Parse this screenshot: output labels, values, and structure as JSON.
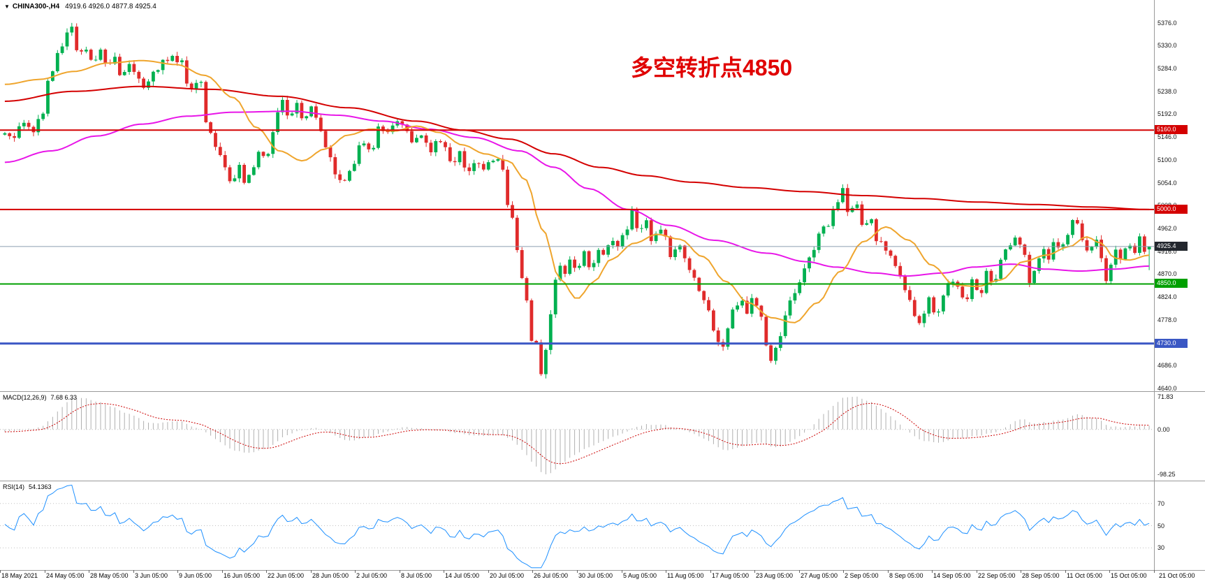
{
  "header": {
    "collapse_icon": "▼",
    "symbol_label": "CHINA300-,H4",
    "ohlc": "4919.6 4926.0 4877.8 4925.4"
  },
  "annotation": {
    "text": "多空转折点4850",
    "color": "#e00000"
  },
  "chart_data": {
    "type": "candlestick",
    "instrument": "CHINA300-",
    "timeframe": "H4",
    "visible_bars": 240,
    "up_color": "#00b050",
    "down_color": "#e02b2b",
    "last_candle": {
      "open": 4919.6,
      "high": 4926.0,
      "low": 4877.8,
      "close": 4925.4
    },
    "price_axis": {
      "min": 4634,
      "max": 5422,
      "ticks": [
        5376.0,
        5330.0,
        5284.0,
        5238.0,
        5192.0,
        5146.0,
        5100.0,
        5054.0,
        5008.0,
        4962.0,
        4916.0,
        4870.0,
        4824.0,
        4778.0,
        4732.0,
        4686.0,
        4640.0
      ]
    },
    "time_axis": {
      "labels": [
        "18 May 2021",
        "24 May 05:00",
        "28 May 05:00",
        "3 Jun 05:00",
        "9 Jun 05:00",
        "16 Jun 05:00",
        "22 Jun 05:00",
        "28 Jun 05:00",
        "2 Jul 05:00",
        "8 Jul 05:00",
        "14 Jul 05:00",
        "20 Jul 05:00",
        "26 Jul 05:00",
        "30 Jul 05:00",
        "5 Aug 05:00",
        "11 Aug 05:00",
        "17 Aug 05:00",
        "23 Aug 05:00",
        "27 Aug 05:00",
        "2 Sep 05:00",
        "8 Sep 05:00",
        "14 Sep 05:00",
        "22 Sep 05:00",
        "28 Sep 05:00",
        "11 Oct 05:00",
        "15 Oct 05:00",
        "21 Oct 05:00"
      ]
    },
    "horizontal_lines": [
      {
        "name": "resistance-5160",
        "price": 5160.0,
        "color": "#d40000",
        "width": 2
      },
      {
        "name": "resistance-5000",
        "price": 5000.0,
        "color": "#d40000",
        "width": 2
      },
      {
        "name": "support-4850",
        "price": 4850.0,
        "color": "#00a000",
        "width": 2
      },
      {
        "name": "support-4730",
        "price": 4730.0,
        "color": "#3a57c4",
        "width": 3
      }
    ],
    "current_price": {
      "value": 4925.4,
      "line_color": "#8c9db0",
      "label_bg": "#23272e"
    },
    "price_path": [
      [
        0.0,
        5160
      ],
      [
        0.008,
        5148
      ],
      [
        0.016,
        5175
      ],
      [
        0.024,
        5155
      ],
      [
        0.032,
        5190
      ],
      [
        0.04,
        5270
      ],
      [
        0.05,
        5335
      ],
      [
        0.058,
        5368
      ],
      [
        0.064,
        5310
      ],
      [
        0.07,
        5330
      ],
      [
        0.077,
        5300
      ],
      [
        0.084,
        5322
      ],
      [
        0.09,
        5290
      ],
      [
        0.096,
        5312
      ],
      [
        0.102,
        5270
      ],
      [
        0.108,
        5295
      ],
      [
        0.115,
        5278
      ],
      [
        0.122,
        5240
      ],
      [
        0.13,
        5272
      ],
      [
        0.138,
        5300
      ],
      [
        0.146,
        5310
      ],
      [
        0.154,
        5295
      ],
      [
        0.162,
        5240
      ],
      [
        0.17,
        5268
      ],
      [
        0.178,
        5160
      ],
      [
        0.185,
        5120
      ],
      [
        0.192,
        5082
      ],
      [
        0.198,
        5052
      ],
      [
        0.204,
        5090
      ],
      [
        0.21,
        5052
      ],
      [
        0.216,
        5085
      ],
      [
        0.222,
        5120
      ],
      [
        0.228,
        5100
      ],
      [
        0.235,
        5160
      ],
      [
        0.242,
        5225
      ],
      [
        0.248,
        5190
      ],
      [
        0.255,
        5215
      ],
      [
        0.262,
        5180
      ],
      [
        0.269,
        5205
      ],
      [
        0.276,
        5160
      ],
      [
        0.283,
        5110
      ],
      [
        0.29,
        5070
      ],
      [
        0.297,
        5058
      ],
      [
        0.304,
        5095
      ],
      [
        0.312,
        5140
      ],
      [
        0.32,
        5120
      ],
      [
        0.328,
        5165
      ],
      [
        0.335,
        5150
      ],
      [
        0.342,
        5185
      ],
      [
        0.35,
        5160
      ],
      [
        0.357,
        5130
      ],
      [
        0.364,
        5155
      ],
      [
        0.371,
        5115
      ],
      [
        0.378,
        5140
      ],
      [
        0.385,
        5125
      ],
      [
        0.392,
        5090
      ],
      [
        0.398,
        5115
      ],
      [
        0.404,
        5070
      ],
      [
        0.41,
        5095
      ],
      [
        0.417,
        5082
      ],
      [
        0.423,
        5092
      ],
      [
        0.429,
        5108
      ],
      [
        0.435,
        5080
      ],
      [
        0.44,
        5010
      ],
      [
        0.445,
        4980
      ],
      [
        0.45,
        4870
      ],
      [
        0.455,
        4835
      ],
      [
        0.459,
        4750
      ],
      [
        0.4625,
        4700
      ],
      [
        0.466,
        4755
      ],
      [
        0.469,
        4660
      ],
      [
        0.4725,
        4720
      ],
      [
        0.476,
        4780
      ],
      [
        0.48,
        4858
      ],
      [
        0.484,
        4895
      ],
      [
        0.489,
        4870
      ],
      [
        0.494,
        4905
      ],
      [
        0.5,
        4882
      ],
      [
        0.506,
        4912
      ],
      [
        0.512,
        4882
      ],
      [
        0.518,
        4920
      ],
      [
        0.524,
        4905
      ],
      [
        0.53,
        4945
      ],
      [
        0.536,
        4920
      ],
      [
        0.542,
        4958
      ],
      [
        0.548,
        4995
      ],
      [
        0.554,
        4952
      ],
      [
        0.56,
        4975
      ],
      [
        0.566,
        4935
      ],
      [
        0.572,
        4958
      ],
      [
        0.577,
        4945
      ],
      [
        0.583,
        4905
      ],
      [
        0.589,
        4932
      ],
      [
        0.595,
        4898
      ],
      [
        0.601,
        4862
      ],
      [
        0.608,
        4835
      ],
      [
        0.615,
        4792
      ],
      [
        0.621,
        4740
      ],
      [
        0.626,
        4712
      ],
      [
        0.631,
        4765
      ],
      [
        0.637,
        4800
      ],
      [
        0.643,
        4825
      ],
      [
        0.649,
        4790
      ],
      [
        0.654,
        4822
      ],
      [
        0.66,
        4782
      ],
      [
        0.666,
        4722
      ],
      [
        0.671,
        4692
      ],
      [
        0.676,
        4735
      ],
      [
        0.681,
        4782
      ],
      [
        0.687,
        4815
      ],
      [
        0.692,
        4840
      ],
      [
        0.699,
        4880
      ],
      [
        0.706,
        4915
      ],
      [
        0.712,
        4950
      ],
      [
        0.719,
        4970
      ],
      [
        0.726,
        5012
      ],
      [
        0.732,
        5040
      ],
      [
        0.738,
        4992
      ],
      [
        0.744,
        5018
      ],
      [
        0.75,
        4958
      ],
      [
        0.756,
        4978
      ],
      [
        0.762,
        4940
      ],
      [
        0.769,
        4925
      ],
      [
        0.776,
        4895
      ],
      [
        0.782,
        4862
      ],
      [
        0.789,
        4822
      ],
      [
        0.795,
        4788
      ],
      [
        0.801,
        4772
      ],
      [
        0.808,
        4820
      ],
      [
        0.814,
        4785
      ],
      [
        0.82,
        4832
      ],
      [
        0.827,
        4862
      ],
      [
        0.833,
        4842
      ],
      [
        0.84,
        4815
      ],
      [
        0.846,
        4865
      ],
      [
        0.852,
        4828
      ],
      [
        0.858,
        4872
      ],
      [
        0.864,
        4850
      ],
      [
        0.87,
        4892
      ],
      [
        0.877,
        4922
      ],
      [
        0.884,
        4945
      ],
      [
        0.89,
        4912
      ],
      [
        0.895,
        4848
      ],
      [
        0.901,
        4888
      ],
      [
        0.907,
        4922
      ],
      [
        0.913,
        4905
      ],
      [
        0.918,
        4938
      ],
      [
        0.923,
        4920
      ],
      [
        0.929,
        4955
      ],
      [
        0.935,
        4985
      ],
      [
        0.941,
        4940
      ],
      [
        0.947,
        4912
      ],
      [
        0.953,
        4938
      ],
      [
        0.958,
        4902
      ],
      [
        0.962,
        4858
      ],
      [
        0.966,
        4888
      ],
      [
        0.971,
        4922
      ],
      [
        0.976,
        4898
      ],
      [
        0.981,
        4932
      ],
      [
        0.986,
        4912
      ],
      [
        0.991,
        4942
      ],
      [
        0.996,
        4918
      ],
      [
        1.0,
        4925.4
      ]
    ],
    "moving_averages": [
      {
        "name": "slow-ma",
        "color": "#d40000",
        "width": 2,
        "path": [
          [
            0.0,
            5218
          ],
          [
            0.06,
            5238
          ],
          [
            0.12,
            5248
          ],
          [
            0.18,
            5242
          ],
          [
            0.24,
            5228
          ],
          [
            0.3,
            5205
          ],
          [
            0.36,
            5178
          ],
          [
            0.4,
            5160
          ],
          [
            0.44,
            5142
          ],
          [
            0.48,
            5112
          ],
          [
            0.52,
            5085
          ],
          [
            0.56,
            5068
          ],
          [
            0.6,
            5055
          ],
          [
            0.65,
            5044
          ],
          [
            0.7,
            5036
          ],
          [
            0.75,
            5028
          ],
          [
            0.8,
            5022
          ],
          [
            0.85,
            5015
          ],
          [
            0.9,
            5010
          ],
          [
            0.95,
            5005
          ],
          [
            1.0,
            5000
          ]
        ]
      },
      {
        "name": "medium-ma",
        "color": "#e816e8",
        "width": 2,
        "path": [
          [
            0.0,
            5095
          ],
          [
            0.04,
            5118
          ],
          [
            0.08,
            5148
          ],
          [
            0.12,
            5172
          ],
          [
            0.16,
            5188
          ],
          [
            0.2,
            5196
          ],
          [
            0.25,
            5198
          ],
          [
            0.29,
            5190
          ],
          [
            0.33,
            5178
          ],
          [
            0.37,
            5162
          ],
          [
            0.41,
            5145
          ],
          [
            0.45,
            5118
          ],
          [
            0.48,
            5085
          ],
          [
            0.51,
            5042
          ],
          [
            0.545,
            5000
          ],
          [
            0.58,
            4968
          ],
          [
            0.62,
            4938
          ],
          [
            0.666,
            4912
          ],
          [
            0.7,
            4895
          ],
          [
            0.726,
            4884
          ],
          [
            0.76,
            4872
          ],
          [
            0.787,
            4866
          ],
          [
            0.82,
            4872
          ],
          [
            0.847,
            4884
          ],
          [
            0.88,
            4890
          ],
          [
            0.908,
            4880
          ],
          [
            0.94,
            4876
          ],
          [
            0.97,
            4880
          ],
          [
            1.0,
            4886
          ]
        ]
      },
      {
        "name": "fast-ma",
        "color": "#efa52d",
        "width": 2,
        "path": [
          [
            0.0,
            5252
          ],
          [
            0.03,
            5262
          ],
          [
            0.06,
            5278
          ],
          [
            0.09,
            5295
          ],
          [
            0.12,
            5300
          ],
          [
            0.15,
            5292
          ],
          [
            0.175,
            5270
          ],
          [
            0.2,
            5225
          ],
          [
            0.22,
            5165
          ],
          [
            0.24,
            5118
          ],
          [
            0.26,
            5098
          ],
          [
            0.28,
            5122
          ],
          [
            0.3,
            5150
          ],
          [
            0.32,
            5162
          ],
          [
            0.34,
            5158
          ],
          [
            0.36,
            5168
          ],
          [
            0.38,
            5155
          ],
          [
            0.4,
            5130
          ],
          [
            0.42,
            5112
          ],
          [
            0.44,
            5098
          ],
          [
            0.455,
            5060
          ],
          [
            0.47,
            4960
          ],
          [
            0.485,
            4860
          ],
          [
            0.5,
            4820
          ],
          [
            0.515,
            4855
          ],
          [
            0.53,
            4900
          ],
          [
            0.55,
            4932
          ],
          [
            0.57,
            4950
          ],
          [
            0.59,
            4940
          ],
          [
            0.61,
            4905
          ],
          [
            0.63,
            4855
          ],
          [
            0.65,
            4812
          ],
          [
            0.67,
            4782
          ],
          [
            0.69,
            4772
          ],
          [
            0.71,
            4812
          ],
          [
            0.73,
            4875
          ],
          [
            0.75,
            4935
          ],
          [
            0.77,
            4965
          ],
          [
            0.79,
            4938
          ],
          [
            0.81,
            4888
          ],
          [
            0.83,
            4848
          ],
          [
            0.85,
            4845
          ],
          [
            0.87,
            4858
          ],
          [
            0.89,
            4895
          ],
          [
            0.91,
            4908
          ],
          [
            0.93,
            4925
          ],
          [
            0.945,
            4945
          ],
          [
            0.958,
            4932
          ],
          [
            0.97,
            4902
          ],
          [
            0.982,
            4898
          ],
          [
            1.0,
            4908
          ]
        ]
      }
    ],
    "indicators": {
      "macd": {
        "label": "MACD(12,26,9)",
        "values_text": "7.68 6.33",
        "params": [
          12,
          26,
          9
        ],
        "range": [
          -112,
          82
        ],
        "norm_max": 71.83,
        "norm_min": -98.25,
        "axis_ticks": [
          {
            "value": 71.83,
            "label": "71.83"
          },
          {
            "value": 0,
            "label": "0.00"
          },
          {
            "value": -98.25,
            "label": "-98.25"
          }
        ],
        "histogram_color": "#b0b0b0",
        "signal_color": "#cc0000"
      },
      "rsi": {
        "label": "RSI(14)",
        "value_text": "54.1363",
        "period": 14,
        "range": [
          10,
          90
        ],
        "levels": [
          70,
          50,
          30
        ],
        "line_color": "#1e90ff",
        "level_color": "#c0c0c0"
      }
    }
  }
}
